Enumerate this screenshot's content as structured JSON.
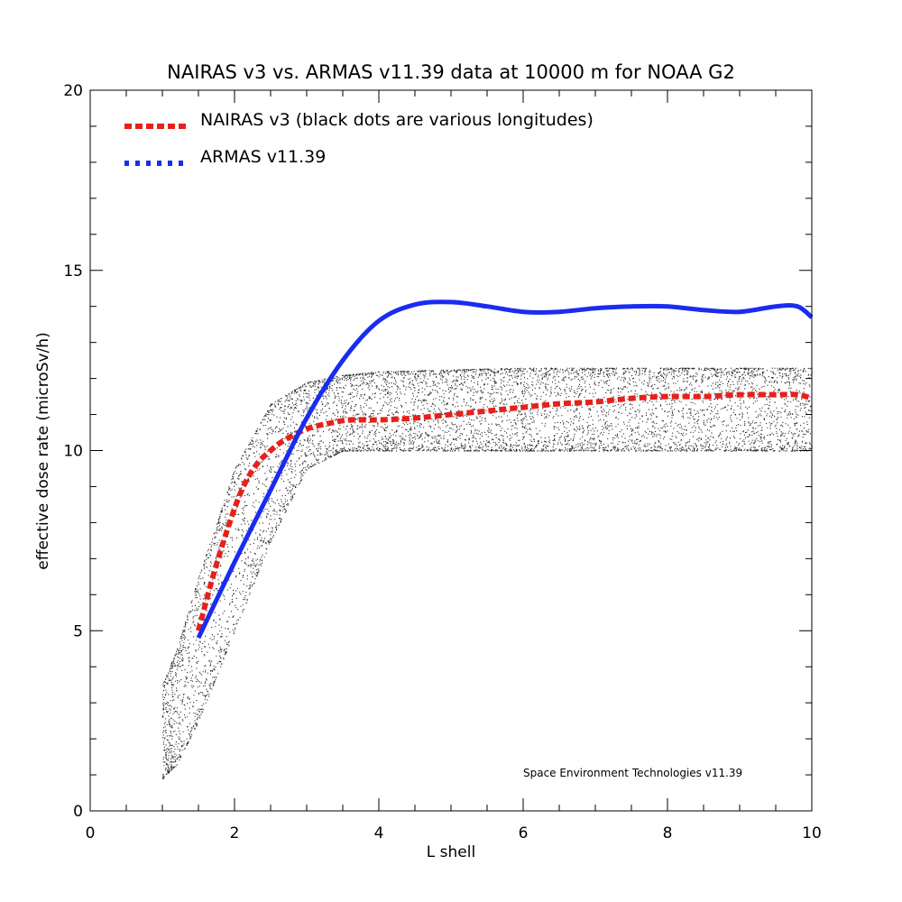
{
  "chart_data": {
    "type": "line",
    "title": "NAIRAS  v3 vs. ARMAS v11.39 data at 10000 m for NOAA G2",
    "xlabel": "L shell",
    "ylabel": "effective dose rate (microSv/h)",
    "xlim": [
      0,
      10
    ],
    "ylim": [
      0,
      20
    ],
    "xticks": [
      0,
      2,
      4,
      6,
      8,
      10
    ],
    "yticks": [
      0,
      5,
      10,
      15,
      20
    ],
    "x_minor_step": 0.5,
    "y_minor_step": 1,
    "legend_position": "top-left",
    "credit": "Space Environment Technologies v11.39",
    "colors": {
      "nairas": "#e8201c",
      "armas": "#1a2cf0",
      "dots": "#000000",
      "axes": "#000000"
    },
    "series": [
      {
        "name": "NAIRAS v3 (black dots are various longitudes)",
        "style": "dashed",
        "x": [
          1.5,
          1.7,
          1.9,
          2.1,
          2.3,
          2.5,
          2.7,
          3.0,
          3.3,
          3.6,
          4.0,
          4.5,
          5.0,
          5.5,
          6.0,
          6.5,
          7.0,
          7.5,
          8.0,
          8.5,
          9.0,
          9.5,
          9.8,
          10.0
        ],
        "y": [
          5.0,
          6.5,
          7.8,
          8.9,
          9.6,
          10.0,
          10.3,
          10.6,
          10.75,
          10.85,
          10.85,
          10.9,
          11.0,
          11.1,
          11.2,
          11.3,
          11.35,
          11.45,
          11.5,
          11.5,
          11.55,
          11.55,
          11.55,
          11.45
        ]
      },
      {
        "name": "ARMAS v11.39",
        "style": "solid",
        "x": [
          1.5,
          2.0,
          2.5,
          3.0,
          3.5,
          4.0,
          4.5,
          5.0,
          5.5,
          6.0,
          6.5,
          7.0,
          7.5,
          8.0,
          8.5,
          9.0,
          9.5,
          9.8,
          10.0
        ],
        "y": [
          4.8,
          6.9,
          8.9,
          10.9,
          12.5,
          13.6,
          14.05,
          14.12,
          14.0,
          13.85,
          13.85,
          13.95,
          14.0,
          14.0,
          13.9,
          13.85,
          14.0,
          14.0,
          13.7
        ]
      }
    ],
    "scatter_band": {
      "name": "various longitudes",
      "x": [
        1.0,
        1.2,
        1.5,
        2.0,
        2.5,
        3.0,
        3.5,
        4.0,
        6.0,
        8.0,
        10.0
      ],
      "y_low": [
        0.9,
        1.3,
        2.5,
        5.0,
        7.5,
        9.5,
        10.0,
        10.0,
        10.0,
        10.0,
        10.0
      ],
      "y_high": [
        3.5,
        4.5,
        6.5,
        9.5,
        11.3,
        11.9,
        12.1,
        12.2,
        12.3,
        12.3,
        12.3
      ]
    }
  }
}
